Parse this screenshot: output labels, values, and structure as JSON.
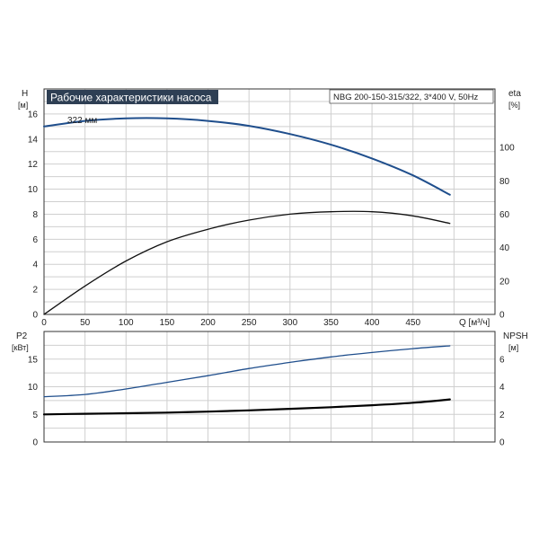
{
  "title": "Рабочие характеристики насоса",
  "model": "NBG 200-150-315/322, 3*400 V, 50Hz",
  "axes": {
    "h_label": "H",
    "h_unit": "[м]",
    "eta_label": "eta",
    "eta_unit": "[%]",
    "q_label": "Q [м³/ч]",
    "p2_label": "P2",
    "p2_unit": "[кВт]",
    "npsh_label": "NPSH",
    "npsh_unit": "[м]"
  },
  "chart_data": [
    {
      "type": "line",
      "title": "Рабочие характеристики насоса",
      "xlabel": "Q [м³/ч]",
      "ylabel": "H [м]",
      "y2label": "eta [%]",
      "xlim": [
        0,
        550
      ],
      "ylim": [
        0,
        18
      ],
      "y2lim": [
        0,
        135
      ],
      "xticks": [
        0,
        50,
        100,
        150,
        200,
        250,
        300,
        350,
        400,
        450
      ],
      "yticks": [
        0,
        2,
        4,
        6,
        8,
        10,
        12,
        14,
        16
      ],
      "y2ticks": [
        0,
        20,
        40,
        60,
        80,
        100
      ],
      "grid": true,
      "annotations": [
        {
          "text": "322 мм",
          "series": "H"
        }
      ],
      "series": [
        {
          "name": "H",
          "axis": "left",
          "color": "#1f4e8c",
          "x": [
            0,
            50,
            100,
            150,
            200,
            250,
            300,
            350,
            400,
            450,
            495
          ],
          "y": [
            15.0,
            15.45,
            15.65,
            15.65,
            15.45,
            15.05,
            14.4,
            13.55,
            12.45,
            11.1,
            9.55
          ]
        },
        {
          "name": "eta",
          "axis": "right",
          "color": "#111111",
          "x": [
            0,
            50,
            100,
            150,
            200,
            250,
            300,
            350,
            400,
            450,
            495
          ],
          "y": [
            0,
            17,
            32,
            43.5,
            51,
            56.5,
            60,
            61.5,
            61.5,
            59,
            54.5
          ]
        }
      ]
    },
    {
      "type": "line",
      "xlim": [
        0,
        550
      ],
      "ylim": [
        0,
        20
      ],
      "y2lim": [
        0,
        8
      ],
      "yticks": [
        0,
        5,
        10,
        15
      ],
      "y2ticks": [
        0,
        2,
        4,
        6
      ],
      "ylabel": "P2 [кВт]",
      "y2label": "NPSH [м]",
      "grid": true,
      "series": [
        {
          "name": "P2",
          "axis": "left",
          "color": "#1f4e8c",
          "x": [
            0,
            50,
            100,
            150,
            200,
            250,
            300,
            350,
            400,
            450,
            495
          ],
          "y": [
            8.2,
            8.6,
            9.6,
            10.8,
            12.0,
            13.3,
            14.4,
            15.4,
            16.2,
            16.9,
            17.4
          ]
        },
        {
          "name": "NPSH",
          "axis": "right",
          "color": "#000000",
          "x": [
            0,
            50,
            100,
            150,
            200,
            250,
            300,
            350,
            400,
            450,
            495
          ],
          "y": [
            2.0,
            2.04,
            2.08,
            2.13,
            2.2,
            2.29,
            2.4,
            2.52,
            2.66,
            2.84,
            3.08
          ]
        }
      ]
    }
  ]
}
